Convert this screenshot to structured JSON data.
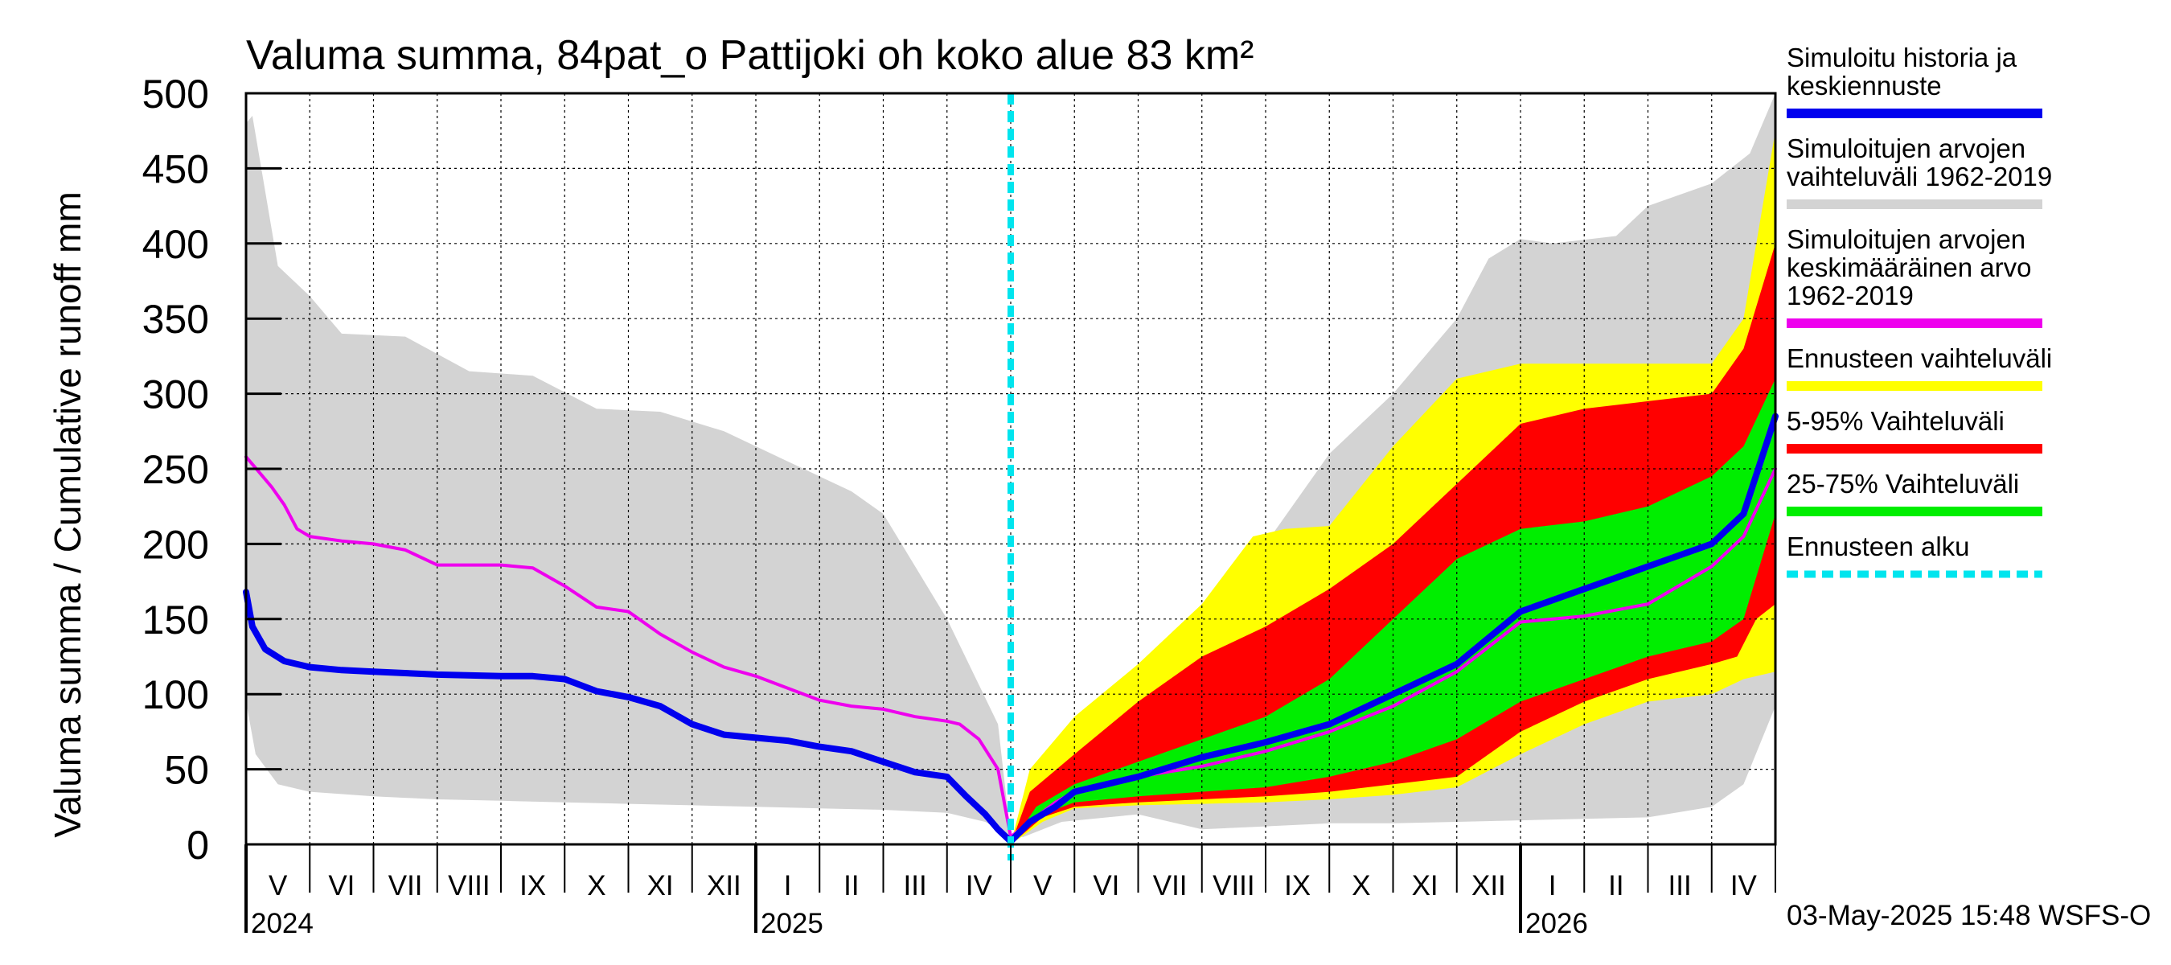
{
  "chart_data": {
    "type": "area",
    "title": "Valuma summa, 84pat_o Pattijoki oh koko alue 83 km²",
    "ylabel": "Valuma summa / Cumulative runoff    mm",
    "ylim": [
      0,
      500
    ],
    "yticks": [
      "0",
      "50",
      "100",
      "150",
      "200",
      "250",
      "300",
      "350",
      "400",
      "450",
      "500"
    ],
    "x_start_month_index": 0,
    "x_end_month_index": 24,
    "forecast_start_month_index": 12,
    "month_labels": [
      "V",
      "VI",
      "VII",
      "VIII",
      "IX",
      "X",
      "XI",
      "XII",
      "I",
      "II",
      "III",
      "IV",
      "V",
      "VI",
      "VII",
      "VIII",
      "IX",
      "X",
      "XI",
      "XII",
      "I",
      "II",
      "III",
      "IV"
    ],
    "year_labels": [
      {
        "label": "2024",
        "month_index": 0
      },
      {
        "label": "2025",
        "month_index": 8
      },
      {
        "label": "2026",
        "month_index": 20
      }
    ],
    "timestamp": "03-May-2025 15:48 WSFS-O",
    "legend": [
      {
        "label_lines": [
          "Simuloitu historia ja",
          "keskiennuste"
        ],
        "color": "#0000ee",
        "style": "solid"
      },
      {
        "label_lines": [
          "Simuloitujen arvojen",
          "vaihteluväli 1962-2019"
        ],
        "color": "#d3d3d3",
        "style": "solid"
      },
      {
        "label_lines": [
          "Simuloitujen arvojen",
          "keskimääräinen arvo",
          "   1962-2019"
        ],
        "color": "#ee00ee",
        "style": "solid"
      },
      {
        "label_lines": [
          "Ennusteen vaihteluväli"
        ],
        "color": "#ffff00",
        "style": "solid"
      },
      {
        "label_lines": [
          "5-95% Vaihteluväli"
        ],
        "color": "#ff0000",
        "style": "solid"
      },
      {
        "label_lines": [
          "25-75% Vaihteluväli"
        ],
        "color": "#00ee00",
        "style": "solid"
      },
      {
        "label_lines": [
          "Ennusteen alku"
        ],
        "color": "#00e5ee",
        "style": "dashed"
      }
    ],
    "series": [
      {
        "name": "hist_range",
        "kind": "band",
        "color": "#d3d3d3",
        "lower": [
          [
            0,
            95
          ],
          [
            0.15,
            60
          ],
          [
            0.5,
            40
          ],
          [
            1,
            35
          ],
          [
            2,
            32
          ],
          [
            3,
            30
          ],
          [
            4,
            29
          ],
          [
            5,
            28
          ],
          [
            6,
            27
          ],
          [
            7,
            26
          ],
          [
            8,
            25
          ],
          [
            9,
            24
          ],
          [
            10,
            23
          ],
          [
            11,
            21
          ],
          [
            11.6,
            15
          ],
          [
            12,
            5
          ],
          [
            12.2,
            5
          ],
          [
            12.8,
            15
          ],
          [
            14,
            20
          ],
          [
            15,
            10
          ],
          [
            16,
            12
          ],
          [
            17,
            14
          ],
          [
            18,
            14
          ],
          [
            19,
            15
          ],
          [
            20,
            16
          ],
          [
            21,
            17
          ],
          [
            22,
            18
          ],
          [
            23,
            25
          ],
          [
            23.5,
            40
          ],
          [
            24,
            92
          ]
        ],
        "upper": [
          [
            0,
            480
          ],
          [
            0.1,
            485
          ],
          [
            0.5,
            385
          ],
          [
            1,
            365
          ],
          [
            1.5,
            340
          ],
          [
            2.5,
            338
          ],
          [
            3.5,
            315
          ],
          [
            4.5,
            312
          ],
          [
            5.5,
            290
          ],
          [
            6.5,
            288
          ],
          [
            7.5,
            275
          ],
          [
            8.5,
            255
          ],
          [
            9.5,
            235
          ],
          [
            10,
            220
          ],
          [
            11,
            150
          ],
          [
            11.8,
            80
          ],
          [
            12,
            5
          ],
          [
            12.3,
            10
          ],
          [
            13,
            80
          ],
          [
            14,
            110
          ],
          [
            15,
            150
          ],
          [
            16,
            200
          ],
          [
            17,
            260
          ],
          [
            18,
            300
          ],
          [
            19,
            350
          ],
          [
            19.5,
            390
          ],
          [
            20,
            403
          ],
          [
            20.5,
            400
          ],
          [
            21.5,
            405
          ],
          [
            22,
            425
          ],
          [
            23,
            440
          ],
          [
            23.6,
            460
          ],
          [
            24,
            500
          ]
        ]
      },
      {
        "name": "forecast_range",
        "kind": "band",
        "color": "#ffff00",
        "lower": [
          [
            12,
            0
          ],
          [
            12.5,
            15
          ],
          [
            13,
            24
          ],
          [
            14,
            26
          ],
          [
            15,
            27
          ],
          [
            16,
            28
          ],
          [
            17,
            30
          ],
          [
            18,
            33
          ],
          [
            19,
            38
          ],
          [
            20,
            60
          ],
          [
            21,
            80
          ],
          [
            22,
            95
          ],
          [
            23,
            100
          ],
          [
            23.5,
            110
          ],
          [
            24,
            115
          ]
        ],
        "upper": [
          [
            12,
            0
          ],
          [
            12.3,
            50
          ],
          [
            13,
            85
          ],
          [
            14,
            120
          ],
          [
            15,
            160
          ],
          [
            15.8,
            205
          ],
          [
            16.3,
            210
          ],
          [
            17,
            212
          ],
          [
            18,
            265
          ],
          [
            19,
            310
          ],
          [
            20,
            320
          ],
          [
            21,
            320
          ],
          [
            22,
            320
          ],
          [
            23,
            320
          ],
          [
            23.5,
            350
          ],
          [
            24,
            475
          ]
        ]
      },
      {
        "name": "p5_95",
        "kind": "band",
        "color": "#ff0000",
        "lower": [
          [
            12,
            0
          ],
          [
            12.5,
            18
          ],
          [
            13,
            25
          ],
          [
            14,
            28
          ],
          [
            15,
            30
          ],
          [
            16,
            32
          ],
          [
            17,
            35
          ],
          [
            18,
            40
          ],
          [
            19,
            45
          ],
          [
            20,
            75
          ],
          [
            21,
            95
          ],
          [
            22,
            110
          ],
          [
            23,
            120
          ],
          [
            23.4,
            125
          ],
          [
            23.7,
            150
          ],
          [
            24,
            160
          ]
        ],
        "upper": [
          [
            12,
            0
          ],
          [
            12.3,
            35
          ],
          [
            13,
            60
          ],
          [
            14,
            95
          ],
          [
            15,
            125
          ],
          [
            16,
            145
          ],
          [
            17,
            170
          ],
          [
            18,
            200
          ],
          [
            19,
            240
          ],
          [
            20,
            280
          ],
          [
            21,
            290
          ],
          [
            22,
            295
          ],
          [
            23,
            300
          ],
          [
            23.5,
            330
          ],
          [
            24,
            400
          ]
        ]
      },
      {
        "name": "p25_75",
        "kind": "band",
        "color": "#00ee00",
        "lower": [
          [
            12,
            0
          ],
          [
            12.5,
            20
          ],
          [
            13,
            28
          ],
          [
            14,
            32
          ],
          [
            15,
            35
          ],
          [
            16,
            38
          ],
          [
            17,
            45
          ],
          [
            18,
            55
          ],
          [
            19,
            70
          ],
          [
            20,
            95
          ],
          [
            21,
            110
          ],
          [
            22,
            125
          ],
          [
            23,
            135
          ],
          [
            23.5,
            150
          ],
          [
            24,
            220
          ]
        ],
        "upper": [
          [
            12,
            0
          ],
          [
            12.4,
            25
          ],
          [
            13,
            40
          ],
          [
            14,
            55
          ],
          [
            15,
            70
          ],
          [
            16,
            85
          ],
          [
            17,
            110
          ],
          [
            18,
            150
          ],
          [
            19,
            190
          ],
          [
            20,
            210
          ],
          [
            21,
            215
          ],
          [
            22,
            225
          ],
          [
            23,
            245
          ],
          [
            23.5,
            265
          ],
          [
            24,
            310
          ]
        ]
      },
      {
        "name": "mean_1962_2019",
        "kind": "line",
        "color": "#ee00ee",
        "width": 4,
        "points": [
          [
            0,
            258
          ],
          [
            0.2,
            248
          ],
          [
            0.4,
            238
          ],
          [
            0.6,
            226
          ],
          [
            0.8,
            210
          ],
          [
            1,
            205
          ],
          [
            1.5,
            202
          ],
          [
            2,
            200
          ],
          [
            2.5,
            196
          ],
          [
            3,
            186
          ],
          [
            3.5,
            186
          ],
          [
            4,
            186
          ],
          [
            4.5,
            184
          ],
          [
            5,
            172
          ],
          [
            5.5,
            158
          ],
          [
            6,
            155
          ],
          [
            6.5,
            140
          ],
          [
            7,
            128
          ],
          [
            7.5,
            118
          ],
          [
            8,
            112
          ],
          [
            8.5,
            104
          ],
          [
            9,
            96
          ],
          [
            9.5,
            92
          ],
          [
            10,
            90
          ],
          [
            10.5,
            85
          ],
          [
            11,
            82
          ],
          [
            11.2,
            80
          ],
          [
            11.5,
            70
          ],
          [
            11.8,
            50
          ],
          [
            12,
            5
          ],
          [
            12.3,
            15
          ],
          [
            12.7,
            28
          ],
          [
            13,
            35
          ],
          [
            13.5,
            40
          ],
          [
            14,
            45
          ],
          [
            15,
            52
          ],
          [
            16,
            62
          ],
          [
            17,
            75
          ],
          [
            18,
            92
          ],
          [
            19,
            115
          ],
          [
            20,
            148
          ],
          [
            21,
            152
          ],
          [
            22,
            160
          ],
          [
            23,
            185
          ],
          [
            23.5,
            205
          ],
          [
            24,
            250
          ]
        ]
      },
      {
        "name": "simulated_history_and_mean_forecast",
        "kind": "line",
        "color": "#0000ee",
        "width": 8,
        "points": [
          [
            0,
            168
          ],
          [
            0.1,
            145
          ],
          [
            0.3,
            130
          ],
          [
            0.6,
            122
          ],
          [
            1,
            118
          ],
          [
            1.5,
            116
          ],
          [
            2,
            115
          ],
          [
            3,
            113
          ],
          [
            4,
            112
          ],
          [
            4.5,
            112
          ],
          [
            5,
            110
          ],
          [
            5.5,
            102
          ],
          [
            6,
            98
          ],
          [
            6.5,
            92
          ],
          [
            7,
            80
          ],
          [
            7.5,
            73
          ],
          [
            8,
            71
          ],
          [
            8.5,
            69
          ],
          [
            9,
            65
          ],
          [
            9.5,
            62
          ],
          [
            10,
            55
          ],
          [
            10.5,
            48
          ],
          [
            11,
            45
          ],
          [
            11.3,
            32
          ],
          [
            11.6,
            20
          ],
          [
            11.8,
            10
          ],
          [
            12,
            2
          ],
          [
            12.3,
            15
          ],
          [
            12.7,
            25
          ],
          [
            13,
            35
          ],
          [
            13.5,
            40
          ],
          [
            14,
            45
          ],
          [
            15,
            58
          ],
          [
            16,
            68
          ],
          [
            17,
            80
          ],
          [
            18,
            100
          ],
          [
            19,
            120
          ],
          [
            20,
            155
          ],
          [
            21,
            170
          ],
          [
            22,
            185
          ],
          [
            23,
            200
          ],
          [
            23.5,
            220
          ],
          [
            24,
            285
          ]
        ]
      }
    ]
  }
}
